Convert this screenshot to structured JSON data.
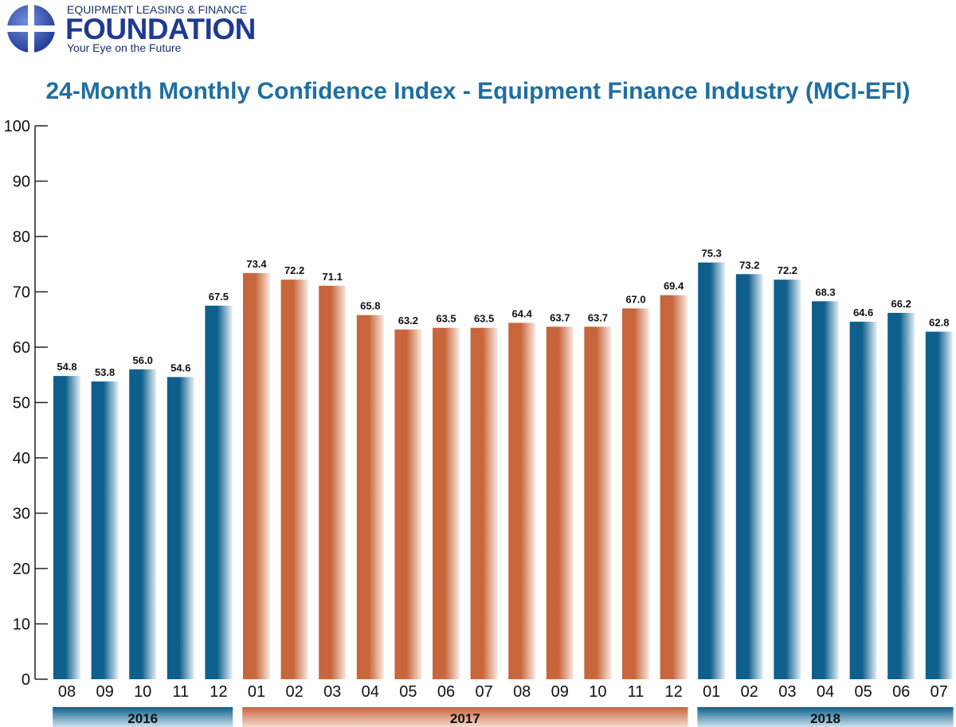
{
  "logo": {
    "top_text": "EQUIPMENT LEASING & FINANCE",
    "main_text": "FOUNDATION",
    "tagline": "Your Eye on the Future"
  },
  "colors": {
    "blue_dark": "#0e5f8c",
    "blue_light": "#e3f0f8",
    "orange_dark": "#c8653a",
    "orange_light": "#f9e9e1",
    "title": "#1f6fa0"
  },
  "chart_data": {
    "type": "bar",
    "title": "24-Month Monthly Confidence Index - Equipment Finance Industry (MCI-EFI)",
    "xlabel": "",
    "ylabel": "",
    "ylim": [
      0,
      100
    ],
    "yticks": [
      0,
      10,
      20,
      30,
      40,
      50,
      60,
      70,
      80,
      90,
      100
    ],
    "categories": [
      "08",
      "09",
      "10",
      "11",
      "12",
      "01",
      "02",
      "03",
      "04",
      "05",
      "06",
      "07",
      "08",
      "09",
      "10",
      "11",
      "12",
      "01",
      "02",
      "03",
      "04",
      "05",
      "06",
      "07"
    ],
    "years": [
      "2016",
      "2016",
      "2016",
      "2016",
      "2016",
      "2017",
      "2017",
      "2017",
      "2017",
      "2017",
      "2017",
      "2017",
      "2017",
      "2017",
      "2017",
      "2017",
      "2017",
      "2018",
      "2018",
      "2018",
      "2018",
      "2018",
      "2018",
      "2018"
    ],
    "values": [
      54.8,
      53.8,
      56.0,
      54.6,
      67.5,
      73.4,
      72.2,
      71.1,
      65.8,
      63.2,
      63.5,
      63.5,
      64.4,
      63.7,
      63.7,
      67.0,
      69.4,
      75.3,
      73.2,
      72.2,
      68.3,
      64.6,
      66.2,
      62.8
    ],
    "value_labels": [
      "54.8",
      "53.8",
      "56.0",
      "54.6",
      "67.5",
      "73.4",
      "72.2",
      "71.1",
      "65.8",
      "63.2",
      "63.5",
      "63.5",
      "64.4",
      "63.7",
      "63.7",
      "67.0",
      "69.4",
      "75.3",
      "73.2",
      "72.2",
      "68.3",
      "64.6",
      "66.2",
      "62.8"
    ],
    "year_groups": [
      {
        "label": "2016",
        "start": 0,
        "end": 4,
        "color": "blue"
      },
      {
        "label": "2017",
        "start": 5,
        "end": 16,
        "color": "orange"
      },
      {
        "label": "2018",
        "start": 17,
        "end": 23,
        "color": "blue"
      }
    ]
  }
}
